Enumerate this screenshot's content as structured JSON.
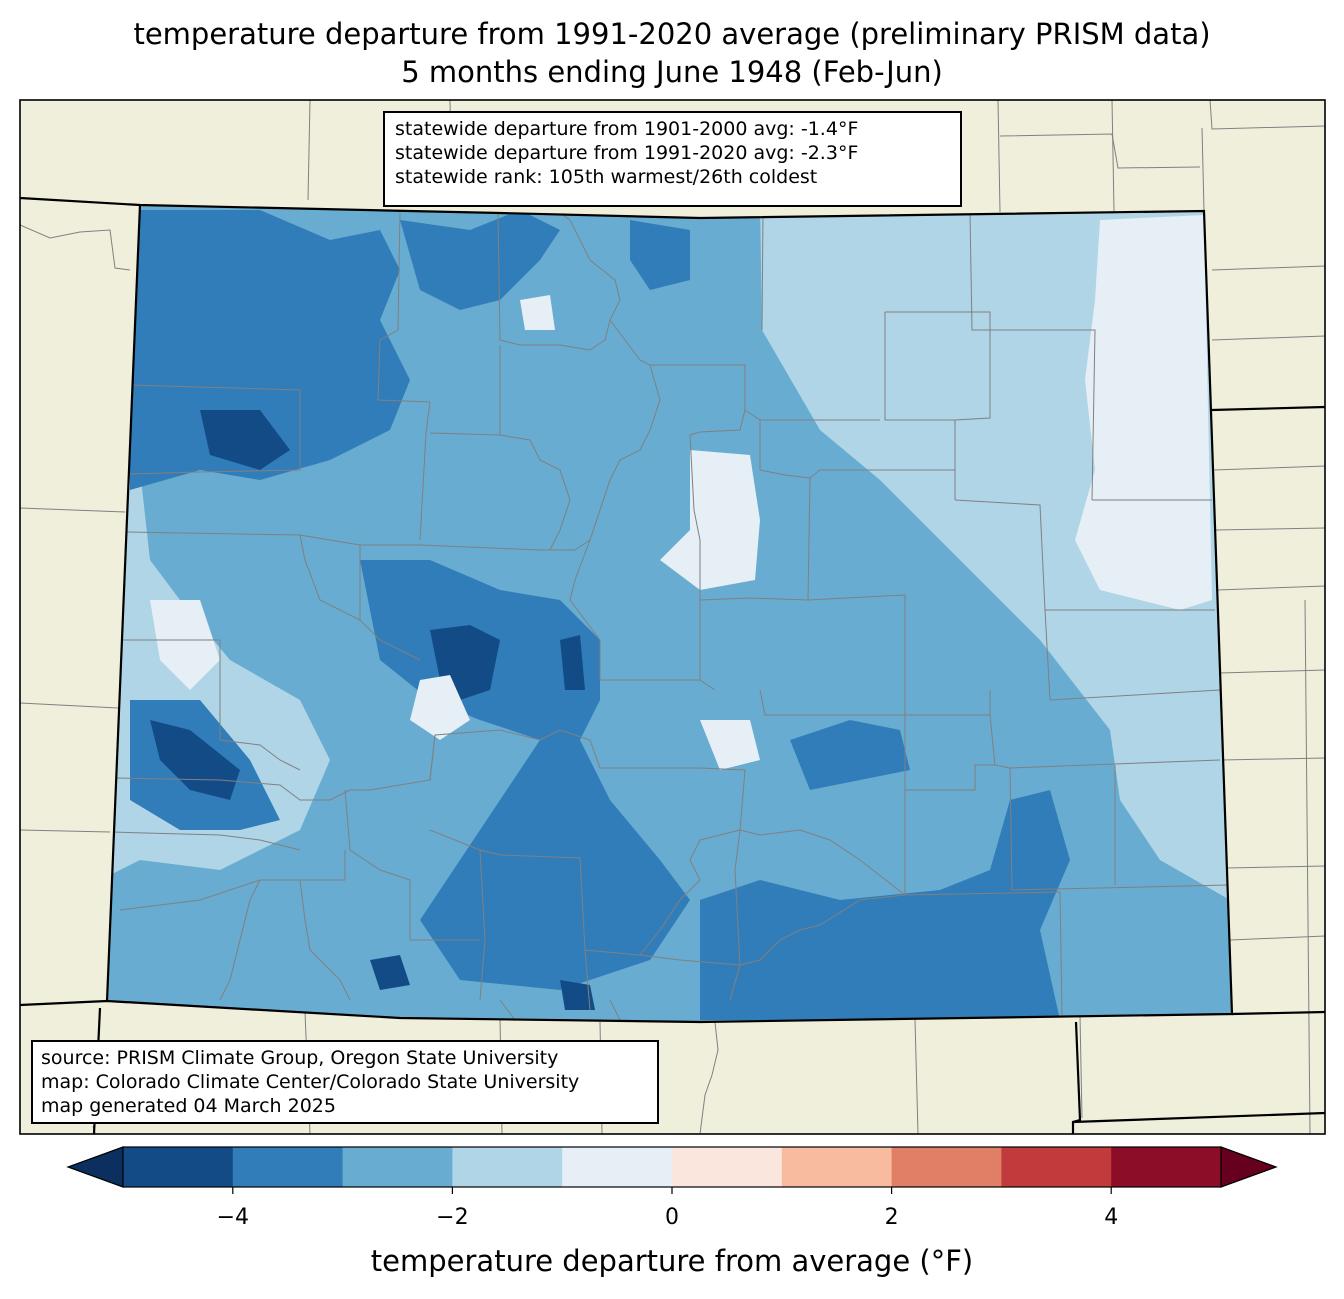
{
  "title": {
    "line1": "temperature departure from 1991-2020 average (preliminary PRISM data)",
    "line2": "5 months ending June 1948 (Feb-Jun)"
  },
  "stats": {
    "line1": "statewide departure from 1901-2000 avg: -1.4°F",
    "line2": "statewide departure from 1991-2020 avg: -2.3°F",
    "line3": "statewide rank: 105th warmest/26th coldest"
  },
  "credits": {
    "line1": "source: PRISM Climate Group, Oregon State University",
    "line2": "map: Colorado Climate Center/Colorado State University",
    "line3": "map generated 04 March 2025"
  },
  "colorbar": {
    "label": "temperature departure from average (°F)",
    "range": [
      -5,
      5
    ],
    "step": 1,
    "ticks": [
      {
        "value": -4,
        "label": "−4"
      },
      {
        "value": -2,
        "label": "−2"
      },
      {
        "value": 0,
        "label": "0"
      },
      {
        "value": 2,
        "label": "2"
      },
      {
        "value": 4,
        "label": "4"
      }
    ],
    "under_color": "#0b3060",
    "over_color": "#67001f",
    "colors": [
      "#134b87",
      "#317dba",
      "#68acd1",
      "#b0d5e7",
      "#e5eff5",
      "#fae6dc",
      "#f8bba0",
      "#e07f66",
      "#c13b3c",
      "#8b0d27"
    ]
  },
  "colors": {
    "neighbor_land": "#efefdc",
    "county_line": "#808080",
    "state_line": "#000000"
  }
}
